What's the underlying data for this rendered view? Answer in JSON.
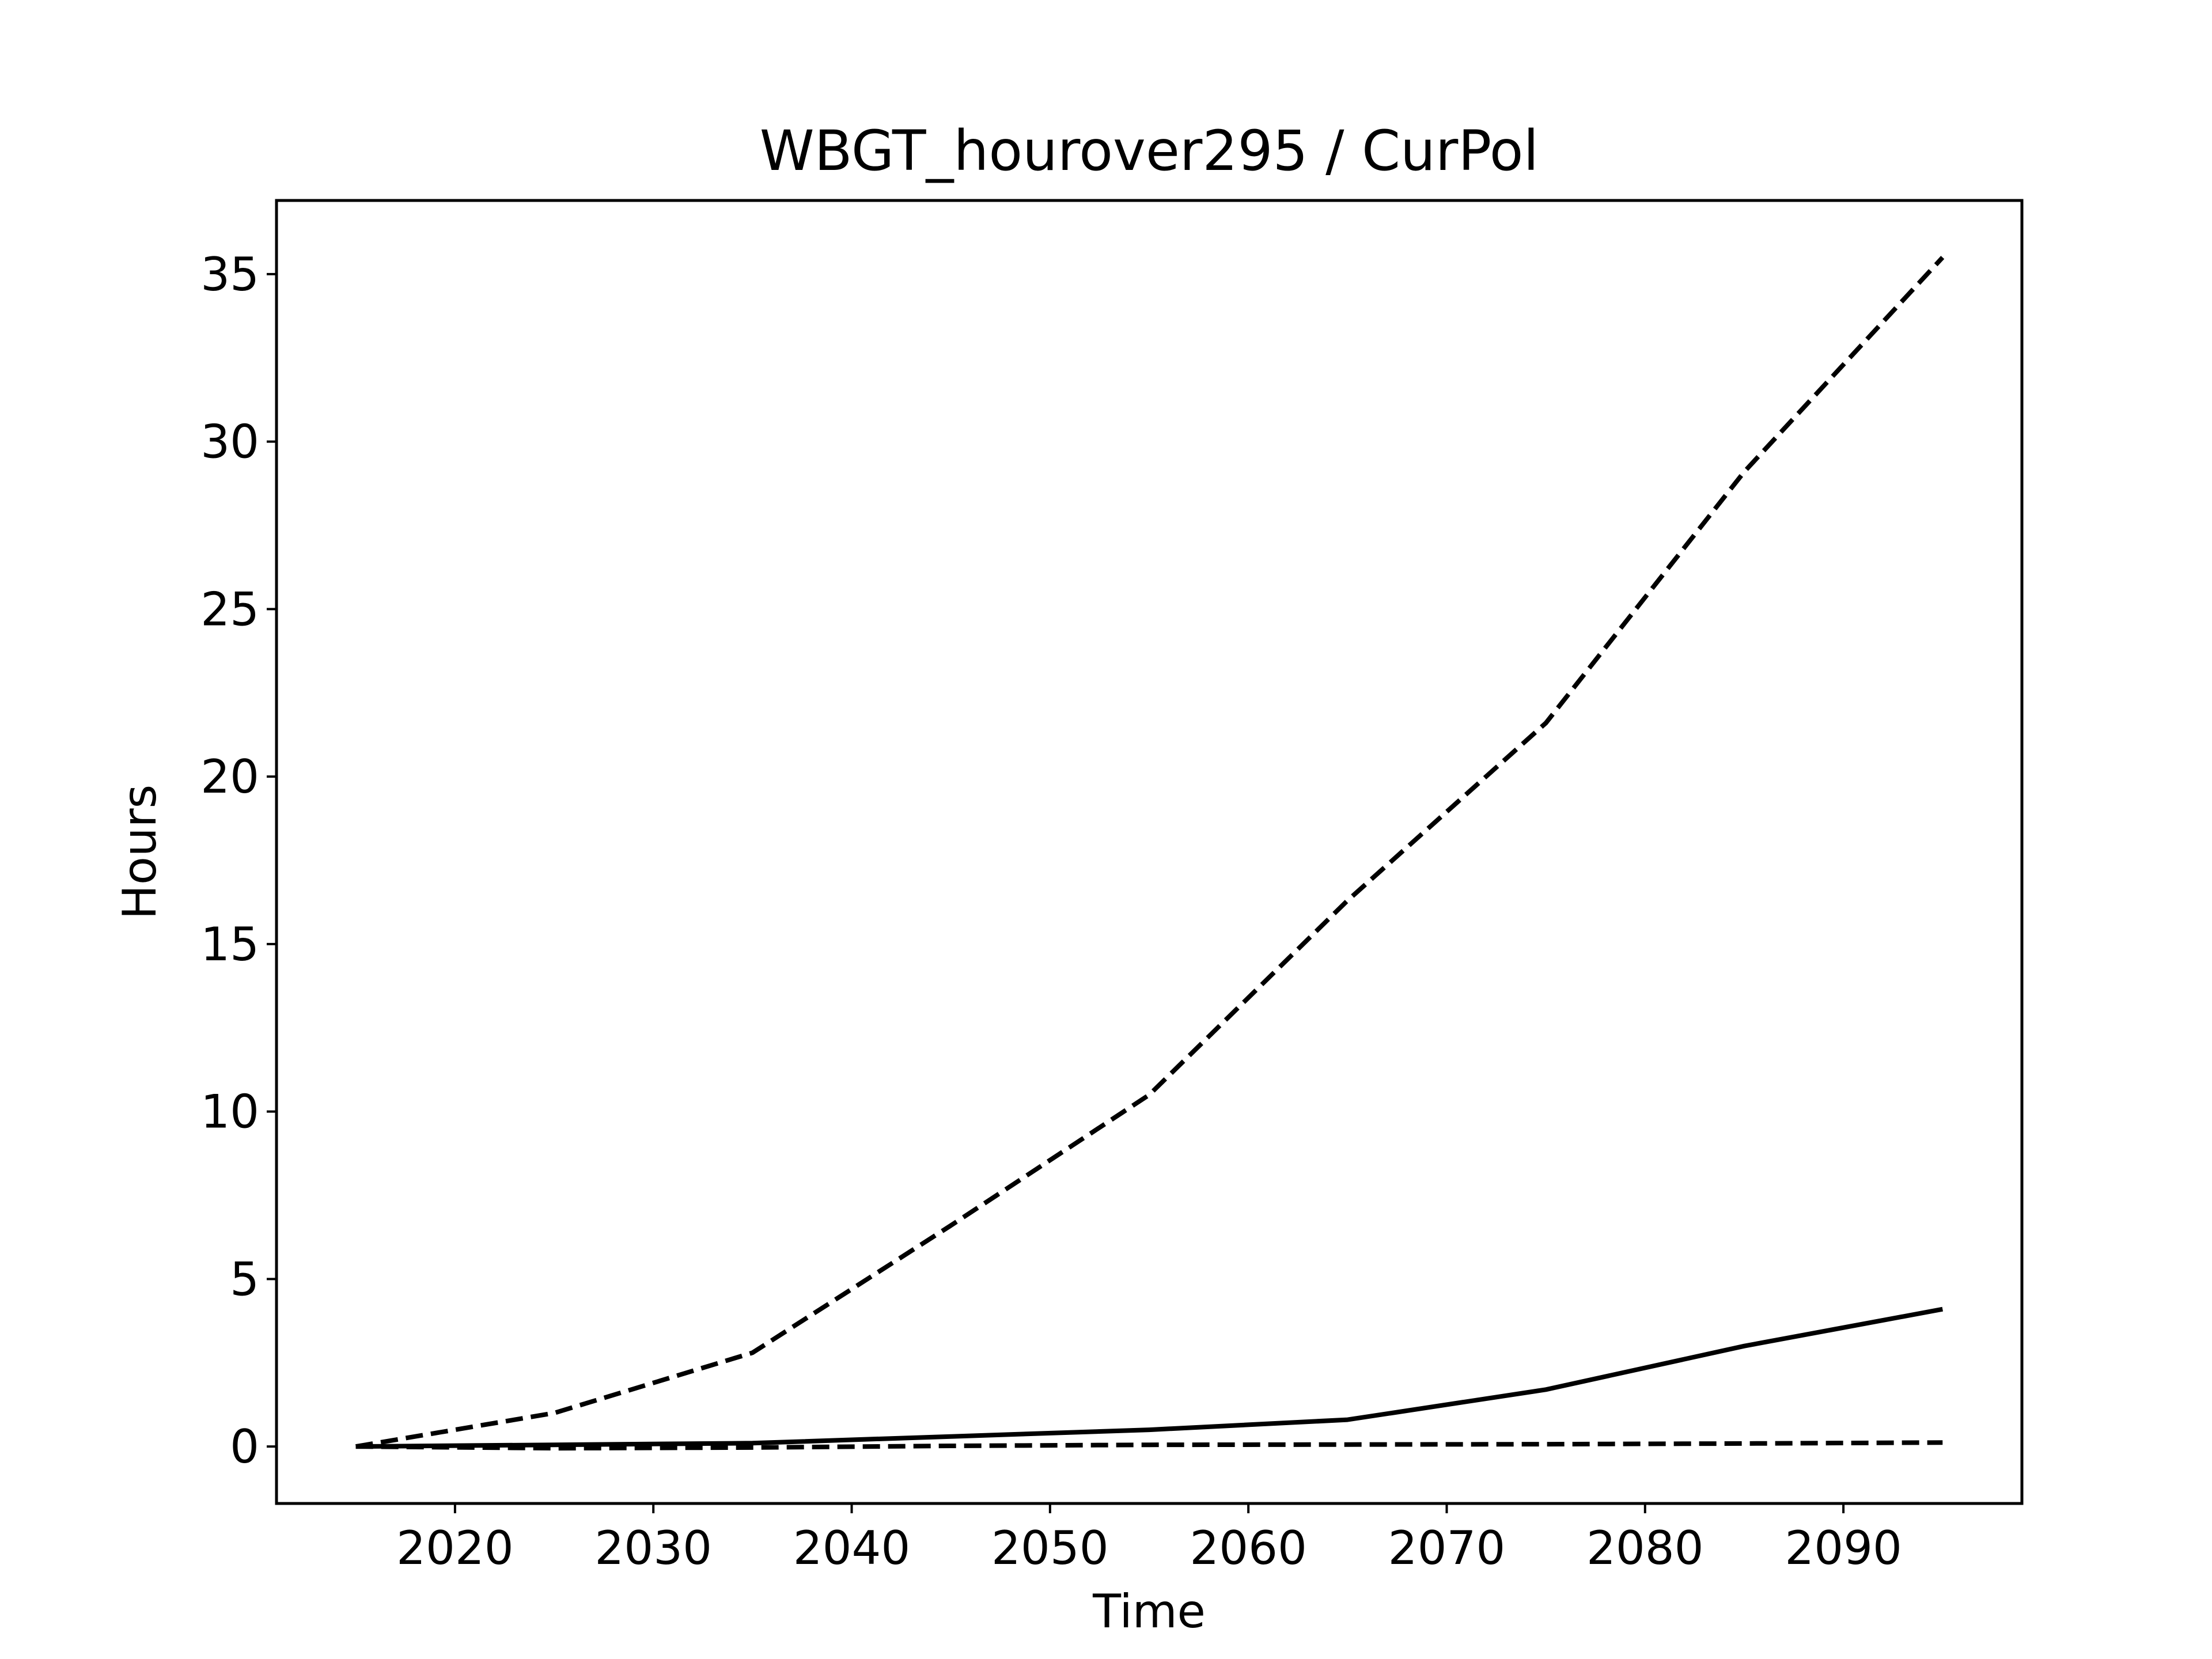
{
  "chart_data": {
    "type": "line",
    "title": "WBGT_hourover295 / CurPol",
    "xlabel": "Time",
    "ylabel": "Hours",
    "xlim": [
      2011,
      2099
    ],
    "ylim": [
      -1.7,
      37.2
    ],
    "xticks": [
      2020,
      2030,
      2040,
      2050,
      2060,
      2070,
      2080,
      2090
    ],
    "yticks": [
      0,
      5,
      10,
      15,
      20,
      25,
      30,
      35
    ],
    "grid": false,
    "legend": "none",
    "x": [
      2015,
      2025,
      2035,
      2045,
      2055,
      2065,
      2075,
      2085,
      2095
    ],
    "series": [
      {
        "style": "dashed",
        "color": "#000000",
        "values": [
          0.0,
          1.0,
          2.8,
          6.6,
          10.5,
          16.3,
          21.6,
          29.1,
          35.5
        ]
      },
      {
        "style": "solid",
        "color": "#000000",
        "values": [
          0.0,
          0.05,
          0.1,
          0.3,
          0.5,
          0.8,
          1.7,
          3.0,
          4.1
        ]
      },
      {
        "style": "dashed",
        "color": "#000000",
        "values": [
          0.0,
          -0.05,
          -0.03,
          0.02,
          0.05,
          0.06,
          0.07,
          0.09,
          0.12
        ]
      }
    ]
  }
}
